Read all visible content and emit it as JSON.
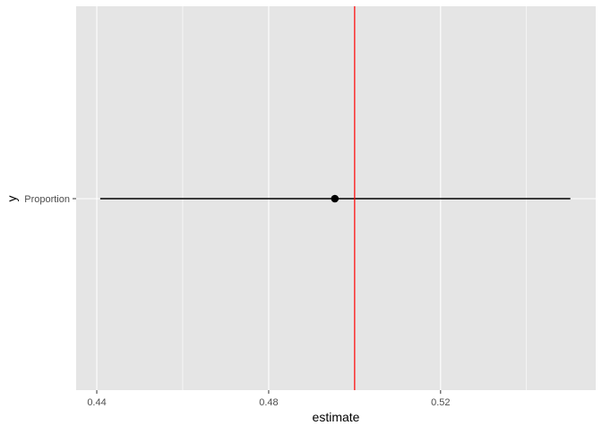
{
  "chart_data": {
    "type": "pointrange",
    "title": "",
    "xlabel": "estimate",
    "ylabel": "y",
    "xlim": [
      0.4352,
      0.5561
    ],
    "x_ticks": [
      0.44,
      0.48,
      0.52
    ],
    "x_tick_labels": [
      "0.44",
      "0.48",
      "0.52"
    ],
    "x_minor_gridlines": [
      0.46,
      0.5,
      0.54
    ],
    "categories": [
      "Proportion"
    ],
    "points": [
      {
        "category": "Proportion",
        "estimate": 0.4954,
        "lower": 0.4408,
        "upper": 0.5502
      }
    ],
    "reference_line": {
      "x": 0.5,
      "color": "#FF0000"
    },
    "grid": true,
    "colors": {
      "panel": "#E5E5E5",
      "grid": "#FFFFFF",
      "point": "#000000",
      "text": "#4D4D4D"
    }
  }
}
